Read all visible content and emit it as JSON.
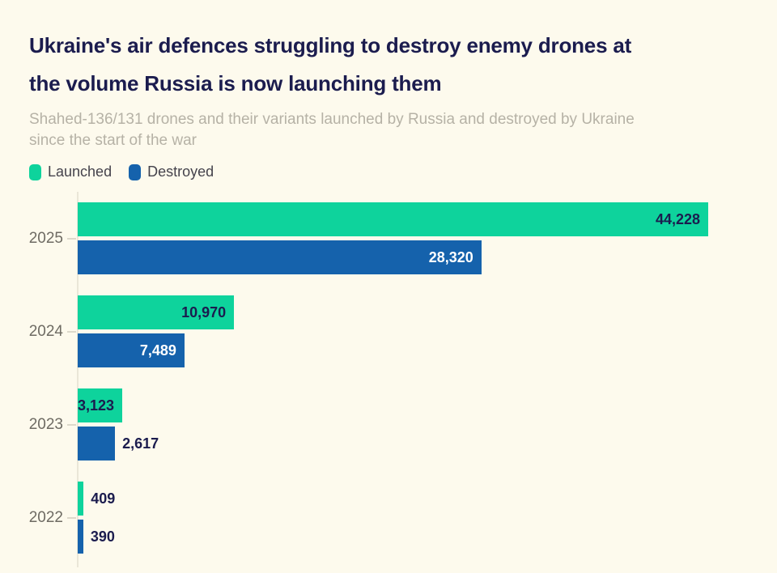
{
  "page": {
    "background": "#fdfaed"
  },
  "header": {
    "title_lines": [
      "Ukraine's air defences struggling to destroy enemy drones at",
      "the volume Russia is now launching them"
    ],
    "subtitle_lines": [
      "Shahed-136/131 drones and their variants launched by Russia and destroyed by Ukraine",
      "since the start of the war"
    ]
  },
  "legend": [
    {
      "label": "Launched",
      "color": "#0ed39c"
    },
    {
      "label": "Destroyed",
      "color": "#1562ac"
    }
  ],
  "chart_data": {
    "type": "bar",
    "orientation": "horizontal",
    "title": "Ukraine's air defences struggling to destroy enemy drones at the volume Russia is now launching them",
    "subtitle": "Shahed-136/131 drones and their variants launched by Russia and destroyed by Ukraine since the start of the war",
    "categories": [
      "2025",
      "2024",
      "2023",
      "2022"
    ],
    "series": [
      {
        "name": "Launched",
        "color": "#0ed39c",
        "values": [
          44228,
          10970,
          3123,
          409
        ],
        "display_values": [
          "44,228",
          "10,970",
          "3,123",
          "409"
        ]
      },
      {
        "name": "Destroyed",
        "color": "#1562ac",
        "values": [
          28320,
          7489,
          2617,
          390
        ],
        "display_values": [
          "28,320",
          "7,489",
          "2,617",
          "390"
        ]
      }
    ],
    "xlim": [
      0,
      44228
    ],
    "grid": false,
    "legend_position": "top-left",
    "colors": {
      "background": "#fdfaed",
      "title_text": "#1b1c4e",
      "subtitle_text": "#b6b2a6",
      "year_label_text": "#6e6b63",
      "value_label_dark": "#1b1c4e",
      "value_label_light": "#ffffff",
      "axis_line": "#eae6d8"
    }
  }
}
